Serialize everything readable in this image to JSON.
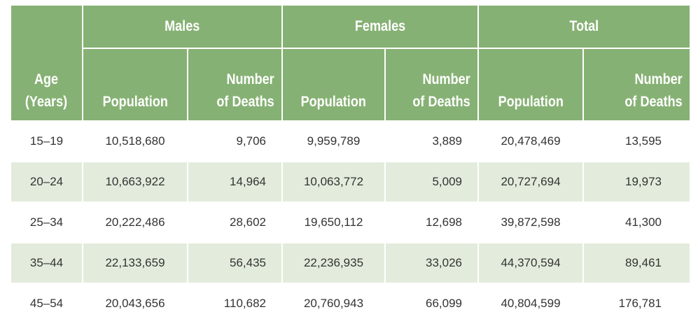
{
  "header": {
    "age": "Age\n(Years)",
    "groups": [
      "Males",
      "Females",
      "Total"
    ],
    "population": "Population",
    "deaths": "Number\nof Deaths"
  },
  "rows": [
    {
      "age": "15–19",
      "m_pop": "10,518,680",
      "m_deaths": "9,706",
      "f_pop": "9,959,789",
      "f_deaths": "3,889",
      "t_pop": "20,478,469",
      "t_deaths": "13,595"
    },
    {
      "age": "20–24",
      "m_pop": "10,663,922",
      "m_deaths": "14,964",
      "f_pop": "10,063,772",
      "f_deaths": "5,009",
      "t_pop": "20,727,694",
      "t_deaths": "19,973"
    },
    {
      "age": "25–34",
      "m_pop": "20,222,486",
      "m_deaths": "28,602",
      "f_pop": "19,650,112",
      "f_deaths": "12,698",
      "t_pop": "39,872,598",
      "t_deaths": "41,300"
    },
    {
      "age": "35–44",
      "m_pop": "22,133,659",
      "m_deaths": "56,435",
      "f_pop": "22,236,935",
      "f_deaths": "33,026",
      "t_pop": "44,370,594",
      "t_deaths": "89,461"
    },
    {
      "age": "45–54",
      "m_pop": "20,043,656",
      "m_deaths": "110,682",
      "f_pop": "20,760,943",
      "f_deaths": "66,099",
      "t_pop": "40,804,599",
      "t_deaths": "176,781"
    }
  ],
  "colors": {
    "header_bg": "#86b174",
    "header_text": "#ffffff",
    "row_alt": "#e3ecdc",
    "row_base": "#ffffff",
    "cell_text": "#333333"
  }
}
